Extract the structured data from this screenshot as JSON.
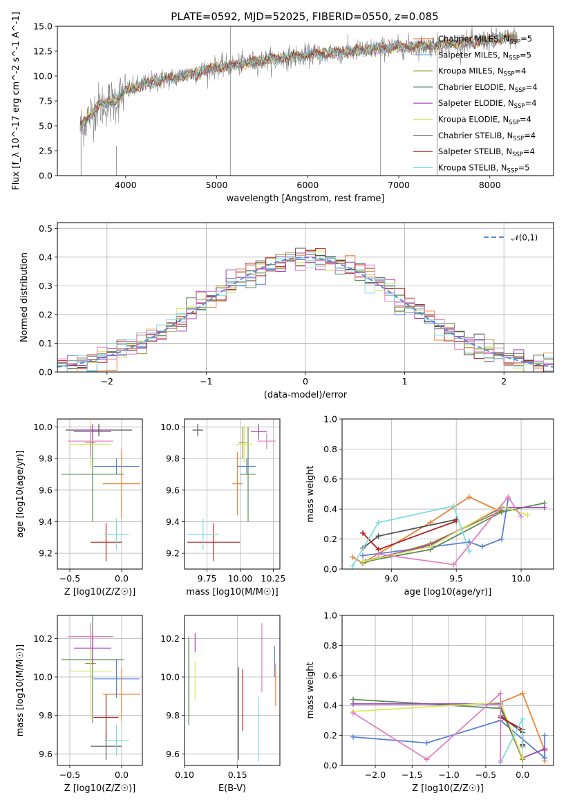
{
  "figure_title": "PLATE=0592, MJD=52025, FIBERID=0550, z=0.085",
  "colors": {
    "Chabrier MILES": "#e8833a",
    "Salpeter MILES": "#5a7fd6",
    "Kroupa MILES": "#9c8a2a",
    "Chabrier ELODIE": "#5b8a5b",
    "Salpeter ELODIE": "#a23fb8",
    "Kroupa ELODIE": "#d6e85a",
    "Chabrier STELIB": "#505050",
    "Salpeter STELIB": "#b31e1e",
    "Kroupa STELIB": "#7fdcdc",
    "Kroupa MILES alt": "#e27fc0",
    "data": "#808080"
  },
  "chart_data": [
    {
      "id": "spectrum",
      "type": "line",
      "title": "PLATE=0592, MJD=52025, FIBERID=0550, z=0.085",
      "xlabel": "wavelength [Angstrom, rest frame]",
      "ylabel": "Flux [f_λ 10^-17 erg cm^-2 s^-1 A^-1]",
      "xlim": [
        3250,
        8700
      ],
      "ylim": [
        0,
        15
      ],
      "xticks": [
        4000,
        5000,
        6000,
        7000,
        8000
      ],
      "yticks": [
        0.0,
        2.5,
        5.0,
        7.5,
        10.0,
        12.5,
        15.0
      ],
      "grid": false,
      "legend_position": "upper-right",
      "continuum": {
        "x": [
          3500,
          3600,
          3700,
          3800,
          3900,
          4000,
          4200,
          4400,
          4600,
          4800,
          5000,
          5200,
          5400,
          5600,
          5800,
          6000,
          6200,
          6400,
          6600,
          6800,
          7000,
          7200,
          7400,
          7600,
          7800,
          8000,
          8200,
          8300
        ],
        "y": [
          4.8,
          6.0,
          7.0,
          7.3,
          7.6,
          8.5,
          9.2,
          9.6,
          10.0,
          10.4,
          10.9,
          11.1,
          11.4,
          11.7,
          11.9,
          12.1,
          12.3,
          12.4,
          12.6,
          12.8,
          12.9,
          13.0,
          13.1,
          13.3,
          13.4,
          13.6,
          13.8,
          13.9
        ]
      },
      "legend": [
        "Chabrier MILES, N_SSP=5",
        "Salpeter MILES, N_SSP=5",
        "Kroupa MILES, N_SSP=4",
        "Chabrier ELODIE, N_SSP=4",
        "Salpeter ELODIE, N_SSP=4",
        "Kroupa ELODIE, N_SSP=4",
        "Chabrier STELIB, N_SSP=4",
        "Salpeter STELIB, N_SSP=4",
        "Kroupa STELIB, N_SSP=5"
      ],
      "spikes": [
        {
          "x": 3510,
          "y": [
            0,
            5
          ]
        },
        {
          "x": 3900,
          "y": [
            0,
            3
          ]
        },
        {
          "x": 5150,
          "y": [
            0,
            15
          ]
        },
        {
          "x": 6800,
          "y": [
            0,
            13
          ]
        },
        {
          "x": 7420,
          "y": [
            0,
            13
          ]
        }
      ]
    },
    {
      "id": "residuals",
      "type": "line",
      "xlabel": "(data-model)/error",
      "ylabel": "Normed distribution",
      "xlim": [
        -2.5,
        2.5
      ],
      "ylim": [
        0,
        0.52
      ],
      "xticks": [
        -2,
        -1,
        0,
        1,
        2
      ],
      "yticks": [
        0.0,
        0.1,
        0.2,
        0.3,
        0.4,
        0.5
      ],
      "grid": true,
      "legend_position": "upper-right",
      "legend": [
        "𝒩(0,1)"
      ],
      "reference": {
        "name": "𝒩(0,1)",
        "mean": 0,
        "sigma": 1
      }
    },
    {
      "id": "age_vs_Z",
      "type": "scatter",
      "xlabel": "Z [log10(Z/Z☉)]",
      "ylabel": "age  [log10(age/yr)]",
      "xlim": [
        -0.62,
        0.2
      ],
      "ylim": [
        9.1,
        10.05
      ],
      "xticks": [
        -0.5,
        0.0
      ],
      "yticks": [
        9.2,
        9.4,
        9.6,
        9.8,
        10.0
      ],
      "grid": true,
      "points": [
        {
          "model": "Chabrier MILES",
          "x": 0.0,
          "xerr": 0.18,
          "y": 9.64,
          "yerr": 0.22
        },
        {
          "model": "Salpeter MILES",
          "x": -0.05,
          "xerr": 0.22,
          "y": 9.75,
          "yerr": 0.05
        },
        {
          "model": "Kroupa MILES",
          "x": -0.3,
          "xerr": 0.05,
          "y": 9.9,
          "yerr": 0.1
        },
        {
          "model": "Chabrier ELODIE",
          "x": -0.28,
          "xerr": 0.3,
          "y": 9.7,
          "yerr": 0.3
        },
        {
          "model": "Salpeter ELODIE",
          "x": -0.28,
          "xerr": 0.18,
          "y": 9.97,
          "yerr": 0.05
        },
        {
          "model": "Kroupa ELODIE",
          "x": -0.3,
          "xerr": 0.2,
          "y": 9.89,
          "yerr": 0.15
        },
        {
          "model": "Chabrier STELIB",
          "x": -0.22,
          "xerr": 0.32,
          "y": 9.98,
          "yerr": 0.04
        },
        {
          "model": "Salpeter STELIB",
          "x": -0.15,
          "xerr": 0.15,
          "y": 9.27,
          "yerr": 0.12
        },
        {
          "model": "Kroupa STELIB",
          "x": -0.05,
          "xerr": 0.12,
          "y": 9.32,
          "yerr": 0.1
        },
        {
          "model": "Kroupa MILES alt",
          "x": -0.3,
          "xerr": 0.22,
          "y": 9.91,
          "yerr": 0.1
        }
      ]
    },
    {
      "id": "age_vs_mass",
      "type": "scatter",
      "xlabel": "mass [log10(M/M☉)]",
      "ylabel": "",
      "xlim": [
        9.58,
        10.3
      ],
      "ylim": [
        9.1,
        10.05
      ],
      "xticks": [
        9.75,
        10.0,
        10.25
      ],
      "yticks": [
        9.2,
        9.4,
        9.6,
        9.8,
        10.0
      ],
      "grid": true,
      "points": [
        {
          "model": "Chabrier MILES",
          "x": 9.98,
          "xerr": 0.04,
          "y": 9.64,
          "yerr": 0.2
        },
        {
          "model": "Salpeter MILES",
          "x": 10.05,
          "xerr": 0.07,
          "y": 9.75,
          "yerr": 0.05
        },
        {
          "model": "Kroupa MILES",
          "x": 10.02,
          "xerr": 0.03,
          "y": 9.9,
          "yerr": 0.1
        },
        {
          "model": "Chabrier ELODIE",
          "x": 10.06,
          "xerr": 0.06,
          "y": 9.7,
          "yerr": 0.3
        },
        {
          "model": "Salpeter ELODIE",
          "x": 10.14,
          "xerr": 0.06,
          "y": 9.97,
          "yerr": 0.05
        },
        {
          "model": "Kroupa ELODIE",
          "x": 10.03,
          "xerr": 0.06,
          "y": 9.89,
          "yerr": 0.12
        },
        {
          "model": "Chabrier STELIB",
          "x": 9.68,
          "xerr": 0.04,
          "y": 9.98,
          "yerr": 0.04
        },
        {
          "model": "Salpeter STELIB",
          "x": 9.8,
          "xerr": 0.2,
          "y": 9.27,
          "yerr": 0.12
        },
        {
          "model": "Kroupa STELIB",
          "x": 9.72,
          "xerr": 0.12,
          "y": 9.32,
          "yerr": 0.1
        },
        {
          "model": "Kroupa MILES alt",
          "x": 10.2,
          "xerr": 0.07,
          "y": 9.91,
          "yerr": 0.05
        }
      ]
    },
    {
      "id": "massweight_vs_age",
      "type": "line",
      "xlabel": "age  [log10(age/yr)]",
      "ylabel": "mass weight",
      "xlim": [
        8.62,
        10.25
      ],
      "ylim": [
        0,
        1
      ],
      "xticks": [
        9.0,
        9.5,
        10.0
      ],
      "yticks": [
        0.0,
        0.2,
        0.4,
        0.6,
        0.8,
        1.0
      ],
      "grid": true,
      "series": [
        {
          "model": "Chabrier MILES",
          "x": [
            8.7,
            8.78,
            9.3,
            9.6,
            9.85
          ],
          "y": [
            0.08,
            0.04,
            0.31,
            0.48,
            0.38
          ]
        },
        {
          "model": "Salpeter MILES",
          "x": [
            8.78,
            9.6,
            9.7,
            9.85,
            9.9
          ],
          "y": [
            0.09,
            0.18,
            0.15,
            0.2,
            0.47
          ]
        },
        {
          "model": "Kroupa MILES",
          "x": [
            8.78,
            9.3,
            9.85
          ],
          "y": [
            0.04,
            0.17,
            0.39
          ]
        },
        {
          "model": "Chabrier ELODIE",
          "x": [
            8.8,
            9.3,
            9.85,
            10.18
          ],
          "y": [
            0.05,
            0.13,
            0.38,
            0.44
          ]
        },
        {
          "model": "Salpeter ELODIE",
          "x": [
            8.78,
            9.3,
            9.85,
            10.18
          ],
          "y": [
            0.05,
            0.16,
            0.41,
            0.41
          ]
        },
        {
          "model": "Kroupa ELODIE",
          "x": [
            8.78,
            9.3,
            9.85,
            10.05
          ],
          "y": [
            0.05,
            0.15,
            0.42,
            0.36
          ]
        },
        {
          "model": "Chabrier STELIB",
          "x": [
            8.78,
            8.9,
            9.5
          ],
          "y": [
            0.14,
            0.22,
            0.33
          ]
        },
        {
          "model": "Salpeter STELIB",
          "x": [
            8.78,
            8.9,
            9.5
          ],
          "y": [
            0.24,
            0.13,
            0.32
          ]
        },
        {
          "model": "Kroupa STELIB",
          "x": [
            8.7,
            8.9,
            9.48,
            9.6
          ],
          "y": [
            0.02,
            0.31,
            0.42,
            0.12
          ]
        },
        {
          "model": "Kroupa MILES alt",
          "x": [
            8.9,
            9.48,
            9.9,
            10.0
          ],
          "y": [
            0.1,
            0.03,
            0.48,
            0.35
          ]
        }
      ]
    },
    {
      "id": "mass_vs_Z",
      "type": "scatter",
      "xlabel": "Z [log10(Z/Z☉)]",
      "ylabel": "mass [log10(M/M☉)]",
      "xlim": [
        -0.62,
        0.2
      ],
      "ylim": [
        9.54,
        10.32
      ],
      "xticks": [
        -0.5,
        0.0
      ],
      "yticks": [
        9.6,
        9.8,
        10.0,
        10.2
      ],
      "grid": true,
      "points": [
        {
          "model": "Chabrier MILES",
          "x": 0.0,
          "xerr": 0.18,
          "y": 9.91,
          "yerr": 0.14
        },
        {
          "model": "Salpeter MILES",
          "x": -0.05,
          "xerr": 0.22,
          "y": 9.99,
          "yerr": 0.1
        },
        {
          "model": "Kroupa MILES",
          "x": -0.3,
          "xerr": 0.05,
          "y": 10.07,
          "yerr": 0.1
        },
        {
          "model": "Chabrier ELODIE",
          "x": -0.28,
          "xerr": 0.3,
          "y": 10.09,
          "yerr": 0.33
        },
        {
          "model": "Salpeter ELODIE",
          "x": -0.28,
          "xerr": 0.18,
          "y": 10.15,
          "yerr": 0.08
        },
        {
          "model": "Kroupa ELODIE",
          "x": -0.3,
          "xerr": 0.2,
          "y": 10.03,
          "yerr": 0.24
        },
        {
          "model": "Chabrier STELIB",
          "x": -0.15,
          "xerr": 0.15,
          "y": 9.64,
          "yerr": 0.07
        },
        {
          "model": "Salpeter STELIB",
          "x": -0.15,
          "xerr": 0.12,
          "y": 9.79,
          "yerr": 0.12
        },
        {
          "model": "Kroupa STELIB",
          "x": -0.05,
          "xerr": 0.12,
          "y": 9.67,
          "yerr": 0.08
        },
        {
          "model": "Kroupa MILES alt",
          "x": -0.3,
          "xerr": 0.22,
          "y": 10.21,
          "yerr": 0.07
        }
      ]
    },
    {
      "id": "mass_vs_EBV",
      "type": "scatter",
      "xlabel": "E(B-V)",
      "ylabel": "",
      "xlim": [
        0.1,
        0.19
      ],
      "ylim": [
        9.54,
        10.32
      ],
      "xticks": [
        0.1,
        0.15
      ],
      "yticks": [
        9.6,
        9.8,
        10.0,
        10.2
      ],
      "grid": true,
      "points": [
        {
          "model": "Chabrier MILES",
          "x": 0.186,
          "y": 9.96,
          "yerr": 0.11
        },
        {
          "model": "Salpeter MILES",
          "x": 0.185,
          "y": 10.08,
          "yerr": 0.08
        },
        {
          "model": "Kroupa MILES",
          "x": 0.104,
          "y": 10.0,
          "yerr": 0.2
        },
        {
          "model": "Chabrier ELODIE",
          "x": 0.104,
          "y": 9.98,
          "yerr": 0.23
        },
        {
          "model": "Salpeter ELODIE",
          "x": 0.11,
          "y": 10.18,
          "yerr": 0.05
        },
        {
          "model": "Kroupa ELODIE",
          "x": 0.11,
          "y": 9.98,
          "yerr": 0.1
        },
        {
          "model": "Chabrier STELIB",
          "x": 0.151,
          "y": 9.81,
          "yerr": 0.24
        },
        {
          "model": "Salpeter STELIB",
          "x": 0.155,
          "y": 9.88,
          "yerr": 0.16
        },
        {
          "model": "Kroupa STELIB",
          "x": 0.17,
          "y": 9.73,
          "yerr": 0.17
        },
        {
          "model": "Kroupa MILES alt",
          "x": 0.173,
          "y": 10.1,
          "yerr": 0.18
        }
      ]
    },
    {
      "id": "massweight_vs_Z",
      "type": "line",
      "xlabel": "Z [log10(Z/Z☉)]",
      "ylabel": "mass weight",
      "xlim": [
        -2.45,
        0.42
      ],
      "ylim": [
        0,
        1
      ],
      "xticks": [
        -2.0,
        -1.5,
        -1.0,
        -0.5,
        0.0
      ],
      "yticks": [
        0.0,
        0.2,
        0.4,
        0.6,
        0.8,
        1.0
      ],
      "grid": true,
      "series": [
        {
          "model": "Chabrier MILES",
          "x": [
            -0.3,
            0.0,
            0.3,
            0.3
          ],
          "y": [
            0.42,
            0.48,
            0.1,
            0.03
          ]
        },
        {
          "model": "Salpeter MILES",
          "x": [
            -2.3,
            -1.3,
            -0.3,
            0.3,
            0.3
          ],
          "y": [
            0.19,
            0.15,
            0.3,
            0.05,
            0.2
          ]
        },
        {
          "model": "Kroupa MILES",
          "x": [
            -0.3,
            0.0
          ],
          "y": [
            0.39,
            0.04
          ]
        },
        {
          "model": "Chabrier ELODIE",
          "x": [
            -2.3,
            -0.3,
            0.0
          ],
          "y": [
            0.44,
            0.38,
            0.05
          ]
        },
        {
          "model": "Salpeter ELODIE",
          "x": [
            -2.3,
            -0.3,
            0.0,
            0.3
          ],
          "y": [
            0.41,
            0.41,
            0.05,
            0.11
          ]
        },
        {
          "model": "Kroupa ELODIE",
          "x": [
            -2.3,
            -0.3,
            0.0
          ],
          "y": [
            0.36,
            0.42,
            0.05
          ]
        },
        {
          "model": "Chabrier STELIB",
          "x": [
            -0.3,
            0.0,
            0.0
          ],
          "y": [
            0.33,
            0.22,
            0.14
          ]
        },
        {
          "model": "Salpeter STELIB",
          "x": [
            -0.3,
            0.0,
            0.0
          ],
          "y": [
            0.32,
            0.24,
            0.13
          ]
        },
        {
          "model": "Kroupa STELIB",
          "x": [
            -0.3,
            -0.3,
            0.0,
            0.0
          ],
          "y": [
            0.42,
            0.02,
            0.31,
            0.12
          ]
        },
        {
          "model": "Kroupa MILES alt",
          "x": [
            -2.3,
            -1.3,
            -0.3,
            -0.3
          ],
          "y": [
            0.35,
            0.04,
            0.48,
            0.03
          ]
        }
      ]
    }
  ]
}
